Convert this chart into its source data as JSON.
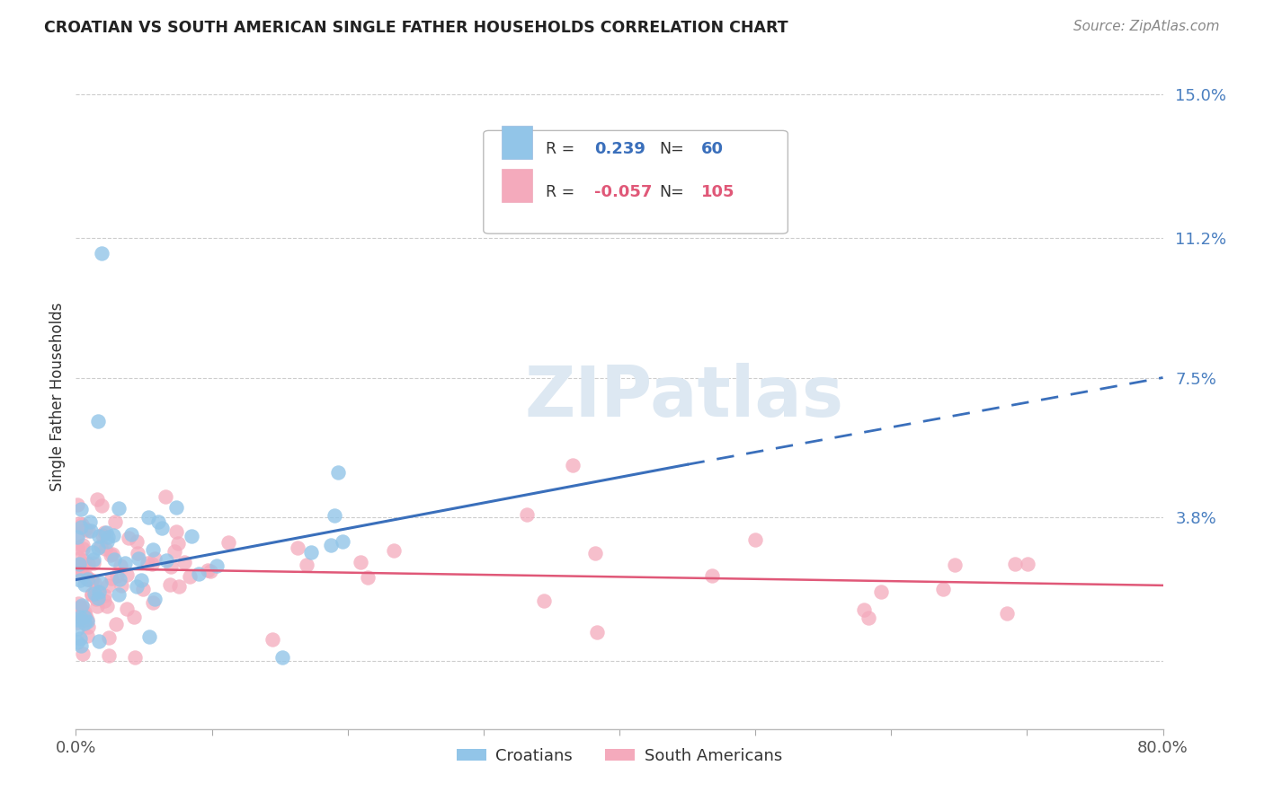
{
  "title": "CROATIAN VS SOUTH AMERICAN SINGLE FATHER HOUSEHOLDS CORRELATION CHART",
  "source": "Source: ZipAtlas.com",
  "ylabel": "Single Father Households",
  "xlim": [
    0.0,
    0.8
  ],
  "ylim": [
    -0.018,
    0.158
  ],
  "ytick_positions": [
    0.0,
    0.038,
    0.075,
    0.112,
    0.15
  ],
  "ytick_labels": [
    "",
    "3.8%",
    "7.5%",
    "11.2%",
    "15.0%"
  ],
  "croatian_color": "#92C5E8",
  "south_american_color": "#F4AABC",
  "croatian_line_color": "#3A6FBB",
  "south_american_line_color": "#E05878",
  "legend_r_croatian": "0.239",
  "legend_n_croatian": "60",
  "legend_r_south_american": "-0.057",
  "legend_n_south_american": "105",
  "background_color": "#FFFFFF",
  "grid_color": "#C8C8C8",
  "cro_line_start_x": 0.0,
  "cro_line_start_y": 0.0215,
  "cro_line_end_solid_x": 0.45,
  "cro_line_end_solid_y": 0.052,
  "cro_line_end_x": 0.8,
  "cro_line_end_y": 0.075,
  "sa_line_start_x": 0.0,
  "sa_line_start_y": 0.0245,
  "sa_line_end_x": 0.8,
  "sa_line_end_y": 0.02
}
